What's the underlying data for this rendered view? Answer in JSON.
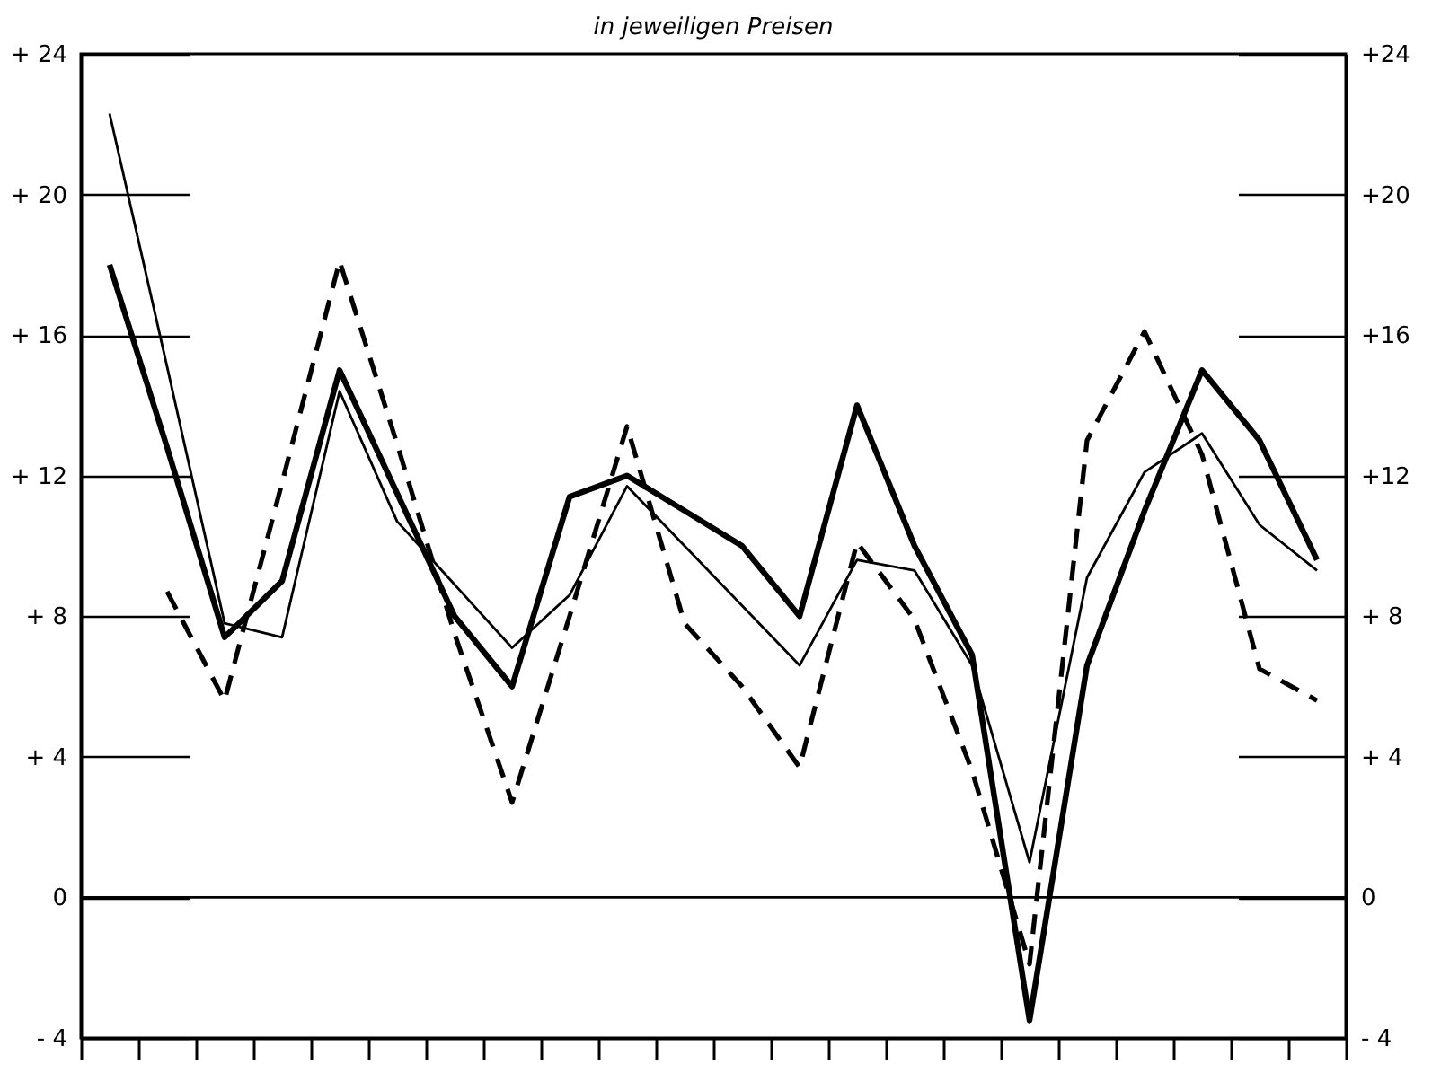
{
  "chart_data": {
    "type": "line",
    "title": "in jeweiligen Preisen",
    "categories": [
      null,
      null,
      null,
      null,
      null,
      null,
      null,
      null,
      null,
      null,
      null,
      null,
      null,
      null,
      null,
      null,
      null,
      null,
      null,
      null,
      null,
      null
    ],
    "ylim": [
      -4,
      24
    ],
    "yticks": [
      {
        "value": -4,
        "label": "- 4"
      },
      0,
      {
        "value": 4,
        "label": "+ 4"
      },
      {
        "value": 8,
        "label": "+ 8"
      },
      {
        "value": 12,
        "label": "+ 12"
      },
      {
        "value": 16,
        "label": "+ 16"
      },
      {
        "value": 20,
        "label": "+ 20"
      },
      {
        "value": 24,
        "label": "+ 24"
      }
    ],
    "y2lim": [
      -4,
      24
    ],
    "y2ticks": [
      {
        "value": -4,
        "label": "- 4"
      },
      0,
      {
        "value": 4,
        "label": "+ 4"
      },
      {
        "value": 8,
        "label": "+ 8"
      },
      {
        "value": 12,
        "label": "+12"
      },
      {
        "value": 16,
        "label": "+16"
      },
      {
        "value": 20,
        "label": "+20"
      },
      {
        "value": 24,
        "label": "+24"
      }
    ],
    "grid": "y",
    "ref_lines": [
      {
        "axis": "y",
        "value": 0,
        "color": "#000000"
      }
    ],
    "series": [
      {
        "color": "#000000",
        "line_style": "solid",
        "values": [
          18.0,
          12.8,
          7.4,
          9.0,
          15.0,
          11.5,
          8.0,
          6.0,
          11.4,
          12.0,
          11.0,
          10.0,
          8.0,
          14.0,
          10.0,
          6.9,
          -3.5,
          6.6,
          11.0,
          15.0,
          13.0,
          9.6
        ]
      },
      {
        "color": "#000000",
        "line_style": "solid",
        "values": [
          22.3,
          15.1,
          7.8,
          7.4,
          14.4,
          10.7,
          8.9,
          7.1,
          8.6,
          11.7,
          10.0,
          8.3,
          6.6,
          9.6,
          9.3,
          6.6,
          1.0,
          9.1,
          12.1,
          13.2,
          10.6,
          9.3
        ]
      },
      {
        "color": "#000000",
        "line_style": "dashed",
        "values": [
          null,
          8.7,
          5.6,
          11.8,
          18.1,
          12.9,
          7.5,
          2.7,
          8.0,
          13.4,
          7.8,
          6.0,
          3.7,
          10.1,
          7.9,
          3.6,
          -1.9,
          13.0,
          16.1,
          12.6,
          6.5,
          5.6
        ]
      }
    ]
  }
}
